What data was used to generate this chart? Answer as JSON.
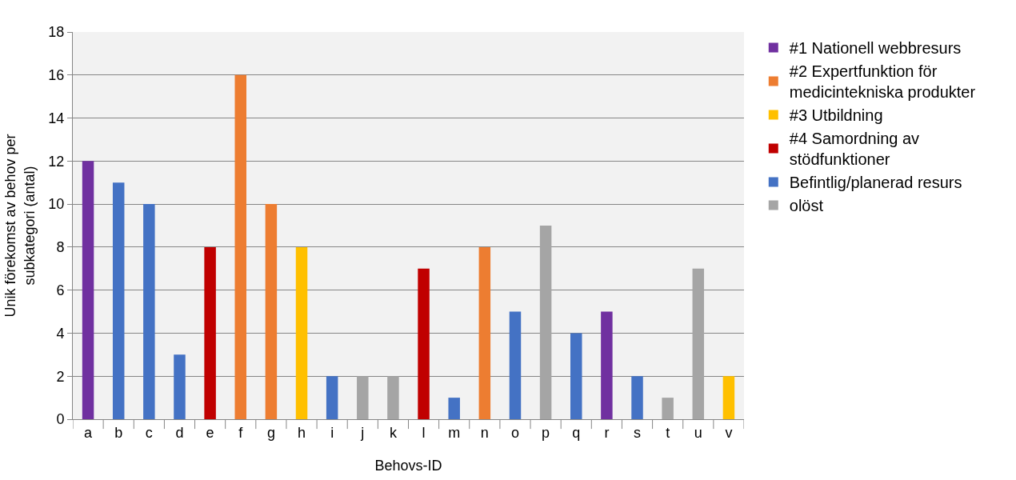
{
  "chart_data": {
    "type": "bar",
    "xlabel": "Behovs-ID",
    "ylabel": "Unik förekomst av behov per subkategori (antal)",
    "categories": [
      "a",
      "b",
      "c",
      "d",
      "e",
      "f",
      "g",
      "h",
      "i",
      "j",
      "k",
      "l",
      "m",
      "n",
      "o",
      "p",
      "q",
      "r",
      "s",
      "t",
      "u",
      "v"
    ],
    "series": [
      {
        "name": "#1 Nationell webbresurs",
        "color": "#7030a0",
        "values": [
          12,
          null,
          null,
          null,
          null,
          null,
          null,
          null,
          null,
          null,
          null,
          null,
          null,
          null,
          null,
          null,
          null,
          5,
          null,
          null,
          null,
          null
        ]
      },
      {
        "name": "#2 Expertfunktion för medicintekniska produkter",
        "color": "#ed7d31",
        "values": [
          null,
          null,
          null,
          null,
          null,
          16,
          10,
          null,
          null,
          null,
          null,
          null,
          null,
          8,
          null,
          null,
          null,
          null,
          null,
          null,
          null,
          null
        ]
      },
      {
        "name": "#3 Utbildning",
        "color": "#ffc000",
        "values": [
          null,
          null,
          null,
          null,
          null,
          null,
          null,
          8,
          null,
          null,
          null,
          null,
          null,
          null,
          null,
          null,
          null,
          null,
          null,
          null,
          null,
          2
        ]
      },
      {
        "name": "#4 Samordning av stödfunktioner",
        "color": "#c00000",
        "values": [
          null,
          null,
          null,
          null,
          8,
          null,
          null,
          null,
          null,
          null,
          null,
          7,
          null,
          null,
          null,
          null,
          null,
          null,
          null,
          null,
          null,
          null
        ]
      },
      {
        "name": "Befintlig/planerad resurs",
        "color": "#4472c4",
        "values": [
          null,
          11,
          10,
          3,
          null,
          null,
          null,
          null,
          2,
          null,
          null,
          null,
          1,
          null,
          5,
          null,
          4,
          null,
          2,
          null,
          null,
          null
        ]
      },
      {
        "name": "olöst",
        "color": "#a5a5a5",
        "values": [
          null,
          null,
          null,
          null,
          null,
          null,
          null,
          null,
          null,
          2,
          2,
          null,
          null,
          null,
          null,
          9,
          null,
          null,
          null,
          1,
          7,
          null
        ]
      }
    ],
    "ylim": [
      0,
      18
    ],
    "yticks": [
      0,
      2,
      4,
      6,
      8,
      10,
      12,
      14,
      16,
      18
    ],
    "grid": "y",
    "legend": "right"
  }
}
